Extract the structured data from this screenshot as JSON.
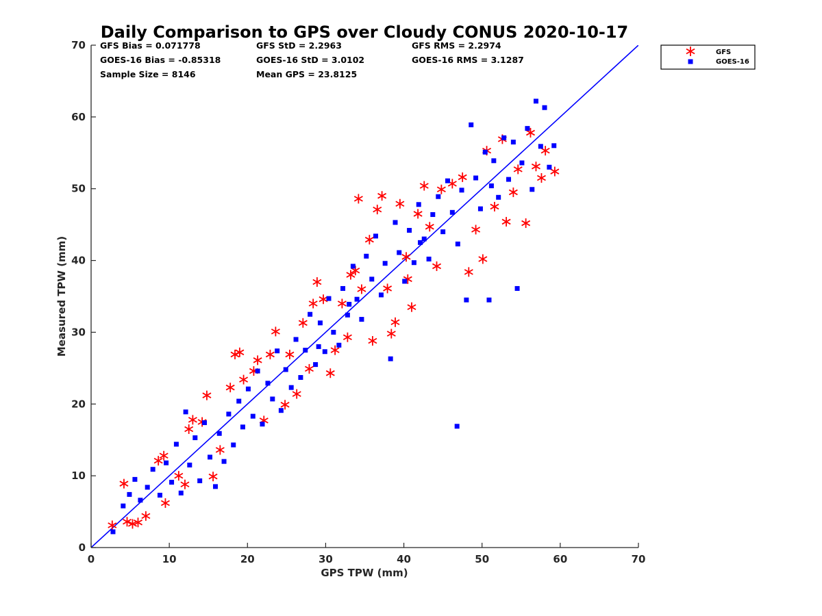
{
  "chart_data": {
    "type": "scatter",
    "title": "Daily Comparison to GPS over Cloudy CONUS 2020-10-17",
    "xlabel": "GPS TPW (mm)",
    "ylabel": "Measured TPW (mm)",
    "xlim": [
      0,
      70
    ],
    "ylim": [
      0,
      70
    ],
    "xticks": [
      "0",
      "10",
      "20",
      "30",
      "40",
      "50",
      "60",
      "70"
    ],
    "yticks": [
      "0",
      "10",
      "20",
      "30",
      "40",
      "50",
      "60",
      "70"
    ],
    "grid": false,
    "legend_position": "outside top-right",
    "stats": [
      [
        "GFS Bias = 0.071778",
        "GFS StD = 2.2963",
        "GFS RMS = 2.2974"
      ],
      [
        "GOES-16 Bias = -0.85318",
        "GOES-16 StD = 3.0102",
        "GOES-16 RMS = 3.1287"
      ],
      [
        "Sample Size = 8146",
        "Mean GPS = 23.8125",
        ""
      ]
    ],
    "reference_line": {
      "x": [
        0,
        70
      ],
      "y": [
        0,
        70
      ],
      "color": "#0000ff"
    },
    "series": [
      {
        "name": "GFS",
        "marker": "asterisk",
        "color": "#ff0000",
        "points": [
          [
            2.7,
            3.1
          ],
          [
            4.2,
            8.9
          ],
          [
            4.6,
            3.6
          ],
          [
            5.3,
            3.3
          ],
          [
            6.0,
            3.5
          ],
          [
            7.0,
            4.4
          ],
          [
            8.6,
            12.1
          ],
          [
            9.3,
            12.8
          ],
          [
            11.2,
            10.0
          ],
          [
            12.5,
            16.5
          ],
          [
            13.0,
            17.8
          ],
          [
            14.2,
            17.5
          ],
          [
            14.8,
            21.2
          ],
          [
            16.5,
            13.6
          ],
          [
            17.8,
            22.3
          ],
          [
            18.4,
            26.9
          ],
          [
            19.0,
            27.2
          ],
          [
            19.5,
            23.4
          ],
          [
            20.8,
            24.6
          ],
          [
            21.3,
            26.1
          ],
          [
            22.9,
            26.9
          ],
          [
            23.6,
            30.1
          ],
          [
            24.8,
            19.9
          ],
          [
            26.3,
            21.4
          ],
          [
            27.1,
            31.3
          ],
          [
            27.9,
            24.9
          ],
          [
            28.4,
            34.0
          ],
          [
            28.9,
            37.0
          ],
          [
            29.7,
            34.6
          ],
          [
            30.6,
            24.3
          ],
          [
            31.2,
            27.5
          ],
          [
            32.1,
            34.0
          ],
          [
            32.8,
            29.3
          ],
          [
            33.8,
            38.6
          ],
          [
            34.2,
            48.6
          ],
          [
            34.6,
            36.0
          ],
          [
            35.6,
            42.9
          ],
          [
            36.0,
            28.8
          ],
          [
            36.6,
            47.1
          ],
          [
            37.2,
            49.0
          ],
          [
            37.9,
            36.1
          ],
          [
            38.4,
            29.8
          ],
          [
            38.9,
            31.4
          ],
          [
            39.5,
            47.9
          ],
          [
            40.3,
            40.5
          ],
          [
            41.0,
            33.5
          ],
          [
            41.8,
            46.5
          ],
          [
            42.6,
            50.4
          ],
          [
            43.3,
            44.7
          ],
          [
            44.2,
            39.2
          ],
          [
            44.8,
            49.9
          ],
          [
            46.2,
            50.7
          ],
          [
            47.5,
            51.6
          ],
          [
            48.3,
            38.4
          ],
          [
            49.2,
            44.3
          ],
          [
            50.1,
            40.2
          ],
          [
            50.6,
            55.3
          ],
          [
            51.6,
            47.5
          ],
          [
            52.6,
            56.9
          ],
          [
            53.1,
            45.4
          ],
          [
            54.0,
            49.5
          ],
          [
            54.6,
            52.7
          ],
          [
            55.6,
            45.2
          ],
          [
            56.2,
            57.8
          ],
          [
            56.9,
            53.1
          ],
          [
            57.6,
            51.5
          ],
          [
            58.1,
            55.3
          ],
          [
            59.3,
            52.4
          ],
          [
            9.5,
            6.2
          ],
          [
            12.0,
            8.8
          ],
          [
            15.6,
            9.9
          ],
          [
            22.1,
            17.7
          ],
          [
            25.4,
            26.9
          ],
          [
            33.2,
            38.0
          ],
          [
            40.5,
            37.4
          ]
        ]
      },
      {
        "name": "GOES-16",
        "marker": "square",
        "color": "#0000ff",
        "points": [
          [
            2.8,
            2.2
          ],
          [
            4.1,
            5.8
          ],
          [
            4.9,
            7.4
          ],
          [
            5.6,
            9.5
          ],
          [
            6.3,
            6.6
          ],
          [
            7.2,
            8.4
          ],
          [
            7.9,
            10.9
          ],
          [
            8.8,
            7.3
          ],
          [
            9.6,
            11.8
          ],
          [
            10.3,
            9.1
          ],
          [
            10.9,
            14.4
          ],
          [
            11.5,
            7.6
          ],
          [
            12.1,
            18.9
          ],
          [
            12.6,
            11.5
          ],
          [
            13.3,
            15.3
          ],
          [
            13.9,
            9.3
          ],
          [
            14.5,
            17.4
          ],
          [
            15.2,
            12.6
          ],
          [
            15.9,
            8.5
          ],
          [
            16.4,
            15.9
          ],
          [
            17.0,
            12.0
          ],
          [
            17.6,
            18.6
          ],
          [
            18.2,
            14.3
          ],
          [
            18.9,
            20.4
          ],
          [
            19.4,
            16.8
          ],
          [
            20.1,
            22.1
          ],
          [
            20.7,
            18.3
          ],
          [
            21.3,
            24.6
          ],
          [
            21.9,
            17.2
          ],
          [
            22.6,
            22.9
          ],
          [
            23.2,
            20.7
          ],
          [
            23.8,
            27.4
          ],
          [
            24.3,
            19.1
          ],
          [
            24.9,
            24.8
          ],
          [
            25.6,
            22.3
          ],
          [
            26.2,
            29.0
          ],
          [
            26.8,
            23.7
          ],
          [
            27.4,
            27.5
          ],
          [
            28.0,
            32.5
          ],
          [
            28.7,
            25.5
          ],
          [
            29.3,
            31.3
          ],
          [
            29.9,
            27.3
          ],
          [
            30.4,
            34.7
          ],
          [
            31.0,
            30.0
          ],
          [
            31.7,
            28.2
          ],
          [
            32.2,
            36.1
          ],
          [
            32.8,
            32.4
          ],
          [
            33.5,
            39.2
          ],
          [
            34.0,
            34.6
          ],
          [
            34.6,
            31.8
          ],
          [
            35.2,
            40.6
          ],
          [
            35.9,
            37.4
          ],
          [
            36.4,
            43.4
          ],
          [
            37.1,
            35.2
          ],
          [
            37.6,
            39.6
          ],
          [
            38.3,
            26.3
          ],
          [
            38.9,
            45.3
          ],
          [
            39.4,
            41.1
          ],
          [
            40.1,
            37.1
          ],
          [
            40.7,
            44.2
          ],
          [
            41.3,
            39.7
          ],
          [
            41.9,
            47.8
          ],
          [
            42.6,
            43.0
          ],
          [
            43.2,
            40.2
          ],
          [
            43.7,
            46.4
          ],
          [
            44.4,
            48.9
          ],
          [
            45.0,
            44.0
          ],
          [
            45.6,
            51.1
          ],
          [
            46.2,
            46.7
          ],
          [
            46.9,
            42.3
          ],
          [
            47.4,
            49.8
          ],
          [
            48.0,
            34.5
          ],
          [
            48.6,
            58.9
          ],
          [
            49.2,
            51.5
          ],
          [
            49.8,
            47.2
          ],
          [
            50.4,
            55.1
          ],
          [
            50.9,
            34.5
          ],
          [
            51.5,
            53.9
          ],
          [
            52.1,
            48.8
          ],
          [
            52.8,
            57.1
          ],
          [
            53.4,
            51.3
          ],
          [
            54.0,
            56.5
          ],
          [
            54.5,
            36.1
          ],
          [
            55.1,
            53.6
          ],
          [
            55.8,
            58.4
          ],
          [
            56.4,
            49.9
          ],
          [
            56.9,
            62.2
          ],
          [
            57.5,
            55.9
          ],
          [
            58.0,
            61.3
          ],
          [
            58.6,
            53.0
          ],
          [
            59.2,
            56.0
          ],
          [
            46.8,
            16.9
          ],
          [
            29.1,
            28.0
          ],
          [
            33.0,
            33.9
          ],
          [
            42.1,
            42.5
          ],
          [
            51.2,
            50.4
          ]
        ]
      }
    ]
  }
}
